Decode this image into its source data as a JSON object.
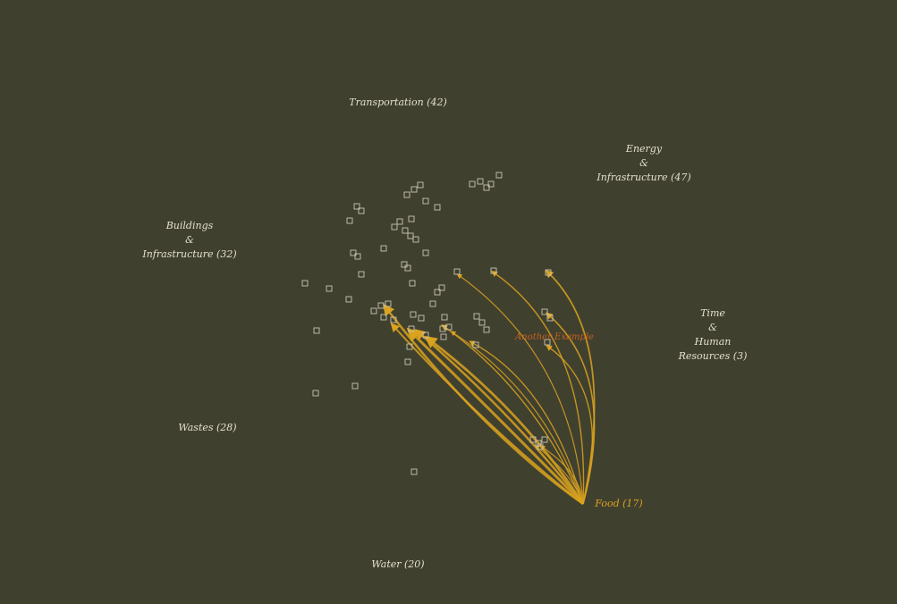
{
  "colors": {
    "background": "#40402f",
    "label": "#e4e0cc",
    "node": "#c9c6b3",
    "link": "#d9a21f",
    "highlight": "#c7611e"
  },
  "categories": {
    "transportation": {
      "lines": [
        "Transportation (42)"
      ]
    },
    "energy": {
      "lines": [
        "Energy",
        "&",
        "Infrastructure (47)"
      ]
    },
    "buildings": {
      "lines": [
        "Buildings",
        "&",
        "Infrastructure (32)"
      ]
    },
    "time": {
      "lines": [
        "Time",
        "&",
        "Human",
        "Resources (3)"
      ]
    },
    "wastes": {
      "lines": [
        "Wastes (28)"
      ]
    },
    "food": {
      "lines": [
        "Food (17)"
      ]
    },
    "water": {
      "lines": [
        "Water (20)"
      ]
    }
  },
  "highlight_label": "Another Example",
  "active_category": "food"
}
